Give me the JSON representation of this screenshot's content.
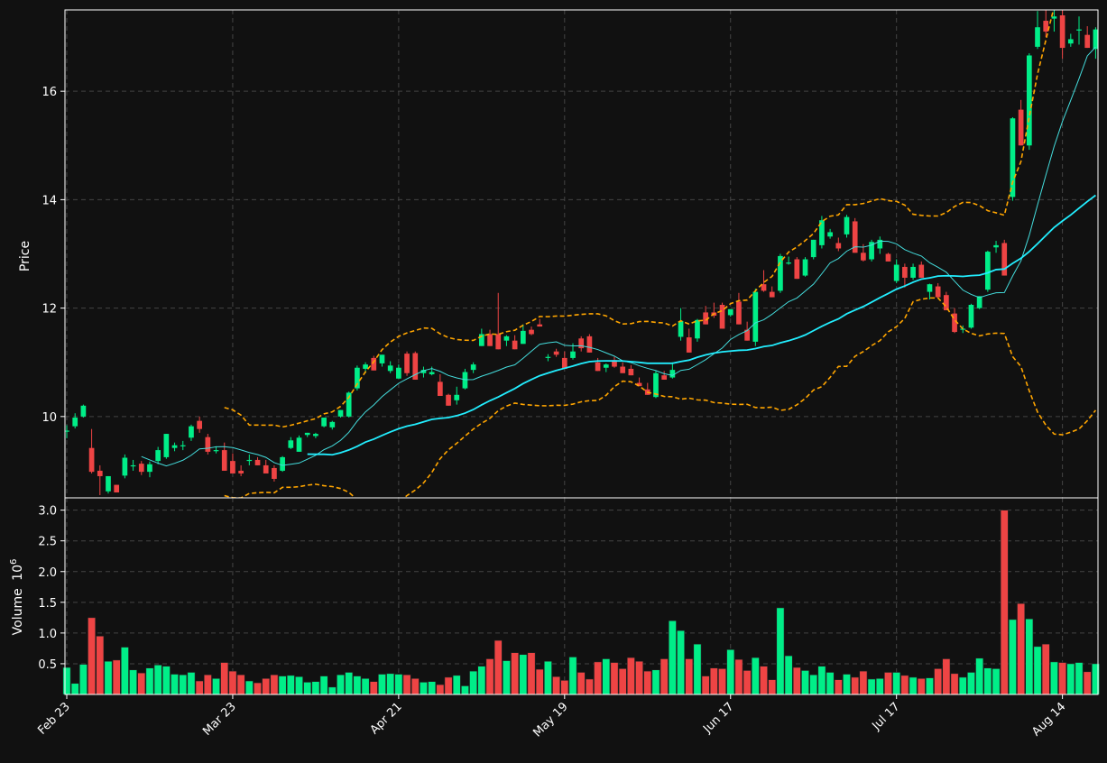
{
  "chart_data": {
    "type": "candlestick",
    "price_axis": {
      "label": "Price",
      "ylim": [
        8.5,
        17.5
      ],
      "ticks": [
        10,
        12,
        14,
        16
      ],
      "tick_labels": [
        "10",
        "12",
        "14",
        "16"
      ]
    },
    "volume_axis": {
      "label": "Volume",
      "exponent_label": "10",
      "exponent": "6",
      "ylim": [
        0,
        3.2
      ],
      "ticks": [
        0.5,
        1.0,
        1.5,
        2.0,
        2.5,
        3.0
      ],
      "tick_labels": [
        "0.5",
        "1.0",
        "1.5",
        "2.0",
        "2.5",
        "3.0"
      ]
    },
    "x_axis": {
      "tick_labels": [
        "Feb 23",
        "Mar 23",
        "Apr 21",
        "May 19",
        "Jun 17",
        "Jul 17",
        "Aug 14"
      ],
      "tick_index": [
        0,
        20,
        40,
        60,
        80,
        100,
        120
      ]
    },
    "grid": true,
    "colors": {
      "background": "#111111",
      "up": "#00ee88",
      "down": "#ee4444",
      "ma_fast": "#44dddd",
      "ma_slow": "#22eeff",
      "bollinger": "#ffa500",
      "grid": "#444444",
      "axes": "#ffffff"
    },
    "ohlc_keys": [
      "open",
      "high",
      "low",
      "close"
    ],
    "ohlc": [
      [
        9.74,
        9.84,
        9.6,
        9.74
      ],
      [
        9.82,
        10.06,
        9.78,
        9.98
      ],
      [
        10.0,
        10.22,
        9.98,
        10.2
      ],
      [
        9.42,
        9.77,
        8.95,
        8.98
      ],
      [
        9.0,
        9.1,
        8.55,
        8.9
      ],
      [
        8.62,
        8.9,
        8.58,
        8.9
      ],
      [
        8.74,
        8.74,
        8.6,
        8.6
      ],
      [
        8.91,
        9.3,
        8.86,
        9.24
      ],
      [
        9.1,
        9.2,
        9.0,
        9.1
      ],
      [
        9.13,
        9.18,
        8.92,
        8.98
      ],
      [
        8.98,
        9.17,
        8.88,
        9.12
      ],
      [
        9.18,
        9.44,
        9.12,
        9.38
      ],
      [
        9.25,
        9.68,
        9.22,
        9.68
      ],
      [
        9.42,
        9.52,
        9.36,
        9.47
      ],
      [
        9.47,
        9.55,
        9.38,
        9.47
      ],
      [
        9.61,
        9.85,
        9.55,
        9.82
      ],
      [
        9.92,
        10.0,
        9.7,
        9.77
      ],
      [
        9.62,
        9.68,
        9.3,
        9.35
      ],
      [
        9.38,
        9.45,
        9.32,
        9.38
      ],
      [
        9.38,
        9.52,
        9.0,
        9.0
      ],
      [
        9.18,
        9.32,
        8.98,
        8.95
      ],
      [
        9.0,
        9.1,
        8.9,
        8.95
      ],
      [
        9.2,
        9.3,
        9.1,
        9.2
      ],
      [
        9.2,
        9.25,
        9.1,
        9.1
      ],
      [
        9.1,
        9.2,
        9.0,
        8.95
      ],
      [
        9.05,
        9.1,
        8.8,
        8.85
      ],
      [
        9.0,
        9.27,
        8.98,
        9.25
      ],
      [
        9.42,
        9.62,
        9.4,
        9.56
      ],
      [
        9.35,
        9.65,
        9.35,
        9.61
      ],
      [
        9.66,
        9.7,
        9.62,
        9.7
      ],
      [
        9.64,
        9.7,
        9.6,
        9.68
      ],
      [
        9.82,
        9.98,
        9.8,
        9.98
      ],
      [
        9.8,
        9.92,
        9.76,
        9.9
      ],
      [
        10.0,
        10.12,
        9.98,
        10.12
      ],
      [
        10.0,
        10.46,
        9.98,
        10.44
      ],
      [
        10.52,
        10.94,
        10.48,
        10.9
      ],
      [
        10.88,
        11.0,
        10.8,
        10.96
      ],
      [
        11.08,
        11.12,
        10.85,
        10.85
      ],
      [
        10.98,
        11.14,
        10.92,
        11.14
      ],
      [
        10.84,
        11.02,
        10.8,
        10.94
      ],
      [
        10.7,
        10.96,
        10.7,
        10.9
      ],
      [
        11.16,
        11.2,
        10.75,
        10.8
      ],
      [
        11.17,
        11.2,
        10.68,
        10.68
      ],
      [
        10.8,
        10.92,
        10.72,
        10.86
      ],
      [
        10.78,
        10.92,
        10.76,
        10.82
      ],
      [
        10.64,
        10.78,
        10.38,
        10.38
      ],
      [
        10.4,
        10.42,
        10.2,
        10.2
      ],
      [
        10.3,
        10.55,
        10.22,
        10.4
      ],
      [
        10.52,
        10.88,
        10.5,
        10.82
      ],
      [
        10.86,
        11.0,
        10.8,
        10.96
      ],
      [
        11.3,
        11.62,
        11.3,
        11.52
      ],
      [
        11.52,
        11.6,
        11.3,
        11.3
      ],
      [
        11.52,
        12.28,
        11.24,
        11.24
      ],
      [
        11.4,
        11.5,
        11.3,
        11.48
      ],
      [
        11.4,
        11.5,
        11.24,
        11.24
      ],
      [
        11.34,
        11.7,
        11.34,
        11.58
      ],
      [
        11.6,
        11.66,
        11.5,
        11.52
      ],
      [
        11.7,
        11.8,
        11.66,
        11.66
      ],
      [
        11.1,
        11.15,
        11.02,
        11.1
      ],
      [
        11.2,
        11.25,
        11.1,
        11.14
      ],
      [
        11.08,
        11.2,
        10.88,
        10.88
      ],
      [
        11.08,
        11.35,
        11.05,
        11.2
      ],
      [
        11.44,
        11.48,
        11.2,
        11.26
      ],
      [
        11.48,
        11.52,
        11.18,
        11.18
      ],
      [
        11.0,
        11.08,
        10.84,
        10.84
      ],
      [
        10.9,
        10.98,
        10.82,
        10.96
      ],
      [
        11.04,
        11.1,
        10.9,
        10.92
      ],
      [
        10.92,
        11.0,
        10.8,
        10.8
      ],
      [
        10.88,
        10.95,
        10.76,
        10.76
      ],
      [
        10.62,
        10.72,
        10.56,
        10.56
      ],
      [
        10.5,
        10.62,
        10.4,
        10.4
      ],
      [
        10.36,
        10.84,
        10.34,
        10.8
      ],
      [
        10.76,
        10.84,
        10.68,
        10.68
      ],
      [
        10.72,
        11.0,
        10.7,
        10.86
      ],
      [
        11.47,
        12.0,
        11.4,
        11.76
      ],
      [
        11.46,
        11.62,
        11.18,
        11.18
      ],
      [
        11.44,
        11.8,
        11.38,
        11.78
      ],
      [
        11.92,
        12.04,
        11.7,
        11.7
      ],
      [
        11.92,
        12.1,
        11.82,
        11.86
      ],
      [
        12.06,
        12.1,
        11.62,
        11.62
      ],
      [
        11.87,
        11.98,
        11.84,
        11.98
      ],
      [
        12.12,
        12.28,
        11.7,
        11.7
      ],
      [
        11.6,
        11.75,
        11.4,
        11.4
      ],
      [
        11.38,
        12.36,
        11.3,
        12.3
      ],
      [
        12.44,
        12.7,
        12.3,
        12.32
      ],
      [
        12.3,
        12.4,
        12.2,
        12.2
      ],
      [
        12.32,
        13.0,
        12.28,
        12.96
      ],
      [
        12.84,
        12.95,
        12.8,
        12.84
      ],
      [
        12.9,
        12.94,
        12.54,
        12.54
      ],
      [
        12.6,
        12.94,
        12.58,
        12.9
      ],
      [
        12.94,
        13.26,
        12.9,
        13.26
      ],
      [
        13.16,
        13.7,
        13.1,
        13.62
      ],
      [
        13.32,
        13.46,
        13.28,
        13.4
      ],
      [
        13.2,
        13.3,
        13.05,
        13.1
      ],
      [
        13.36,
        13.72,
        13.3,
        13.68
      ],
      [
        13.6,
        13.66,
        13.02,
        13.02
      ],
      [
        13.02,
        13.18,
        12.86,
        12.88
      ],
      [
        12.9,
        13.26,
        12.86,
        13.22
      ],
      [
        13.1,
        13.32,
        13.0,
        13.26
      ],
      [
        13.0,
        13.02,
        12.86,
        12.86
      ],
      [
        12.5,
        12.9,
        12.46,
        12.8
      ],
      [
        12.76,
        12.82,
        12.38,
        12.56
      ],
      [
        12.56,
        12.82,
        12.52,
        12.76
      ],
      [
        12.8,
        12.86,
        12.56,
        12.56
      ],
      [
        12.3,
        12.45,
        12.16,
        12.44
      ],
      [
        12.4,
        12.46,
        12.2,
        12.2
      ],
      [
        12.24,
        12.3,
        11.96,
        11.96
      ],
      [
        11.9,
        12.0,
        11.54,
        11.56
      ],
      [
        11.62,
        11.68,
        11.54,
        11.62
      ],
      [
        11.64,
        12.08,
        11.62,
        12.06
      ],
      [
        12.0,
        12.22,
        11.98,
        12.22
      ],
      [
        12.34,
        13.06,
        12.3,
        13.04
      ],
      [
        13.12,
        13.24,
        13.02,
        13.16
      ],
      [
        13.2,
        13.26,
        12.6,
        12.6
      ],
      [
        14.05,
        15.52,
        13.98,
        15.5
      ],
      [
        15.66,
        15.84,
        15.0,
        15.0
      ],
      [
        15.0,
        16.7,
        14.92,
        16.66
      ],
      [
        16.82,
        17.48,
        16.78,
        17.18
      ],
      [
        17.3,
        17.62,
        17.0,
        17.1
      ],
      [
        17.34,
        17.52,
        17.1,
        17.38
      ],
      [
        17.4,
        17.52,
        16.6,
        16.8
      ],
      [
        16.88,
        17.06,
        16.82,
        16.96
      ],
      [
        17.12,
        17.38,
        16.86,
        17.14
      ],
      [
        17.04,
        17.2,
        16.8,
        16.8
      ],
      [
        16.78,
        17.18,
        16.6,
        17.14
      ]
    ],
    "volume": [
      0.44,
      0.18,
      0.49,
      1.25,
      0.95,
      0.54,
      0.56,
      0.77,
      0.4,
      0.35,
      0.43,
      0.48,
      0.46,
      0.33,
      0.32,
      0.36,
      0.22,
      0.32,
      0.26,
      0.52,
      0.38,
      0.32,
      0.22,
      0.19,
      0.26,
      0.32,
      0.3,
      0.31,
      0.29,
      0.2,
      0.21,
      0.3,
      0.12,
      0.32,
      0.36,
      0.3,
      0.26,
      0.21,
      0.33,
      0.34,
      0.33,
      0.32,
      0.26,
      0.2,
      0.21,
      0.16,
      0.28,
      0.31,
      0.14,
      0.38,
      0.46,
      0.58,
      0.88,
      0.55,
      0.68,
      0.65,
      0.68,
      0.41,
      0.54,
      0.29,
      0.23,
      0.61,
      0.36,
      0.25,
      0.53,
      0.58,
      0.52,
      0.42,
      0.6,
      0.54,
      0.38,
      0.4,
      0.58,
      1.2,
      1.04,
      0.58,
      0.82,
      0.3,
      0.43,
      0.42,
      0.73,
      0.57,
      0.39,
      0.6,
      0.46,
      0.24,
      1.41,
      0.63,
      0.44,
      0.39,
      0.32,
      0.46,
      0.36,
      0.24,
      0.33,
      0.28,
      0.38,
      0.25,
      0.26,
      0.36,
      0.36,
      0.31,
      0.28,
      0.26,
      0.27,
      0.42,
      0.58,
      0.34,
      0.28,
      0.36,
      0.59,
      0.43,
      0.42,
      3.0,
      1.22,
      1.48,
      1.23,
      0.78,
      0.82,
      0.53,
      0.52,
      0.5,
      0.52,
      0.37,
      0.5
    ],
    "moving_averages": [
      {
        "window": 10,
        "color": "#44dddd",
        "line_width": 1
      },
      {
        "window": 30,
        "color": "#22eeff",
        "line_width": 1.8
      }
    ],
    "bollinger": {
      "window": 20,
      "num_std": 2,
      "color": "#ffa500",
      "style": "dashed"
    }
  }
}
